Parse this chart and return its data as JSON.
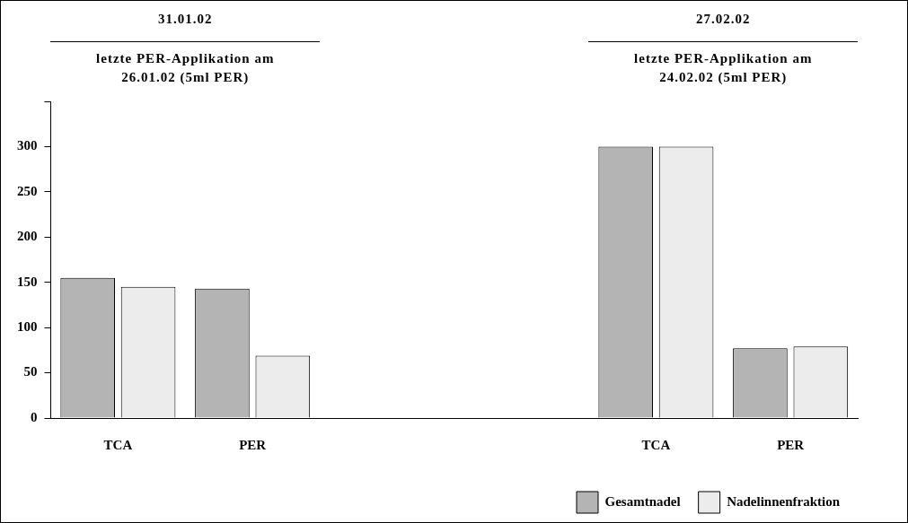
{
  "chart_data": {
    "type": "bar",
    "categories": [
      "TCA",
      "PER",
      null,
      null,
      "TCA",
      "PER"
    ],
    "series": [
      {
        "name": "Gesamtnadel",
        "color": "#b4b4b4",
        "values": [
          155,
          143,
          null,
          null,
          300,
          77
        ]
      },
      {
        "name": "Nadelinnenfraktion",
        "color": "#ececec",
        "values": [
          145,
          69,
          null,
          null,
          300,
          79
        ]
      }
    ],
    "ylim": [
      0,
      350
    ],
    "yticks": [
      0,
      50,
      100,
      150,
      200,
      250,
      300,
      {
        "value": 350,
        "label": null
      }
    ],
    "grid": false,
    "legend": "bottom right",
    "annotations": [
      "31.01.02",
      "letzte PER-Applikation am 26.01.02 (5ml PER)",
      "27.02.02",
      "letzte PER-Applikation am 24.02.02 (5ml PER)"
    ]
  }
}
